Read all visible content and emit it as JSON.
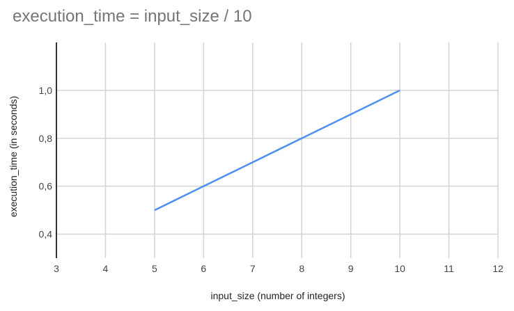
{
  "chart_data": {
    "type": "line",
    "title": "execution_time = input_size / 10",
    "xlabel": "input_size (number of integers)",
    "ylabel": "execution_time (in seconds)",
    "x": [
      5,
      6,
      7,
      8,
      9,
      10
    ],
    "series": [
      {
        "values": [
          0.5,
          0.6,
          0.7,
          0.8,
          0.9,
          1.0
        ],
        "color": "#4f8ff0"
      }
    ],
    "xlim": [
      3,
      12
    ],
    "ylim": [
      0.3,
      1.2
    ],
    "xticks": [
      "3",
      "4",
      "5",
      "6",
      "7",
      "8",
      "9",
      "10",
      "11",
      "12"
    ],
    "yticks": [
      "0,4",
      "0,6",
      "0,8",
      "1,0"
    ],
    "grid": true,
    "legend": "none"
  }
}
